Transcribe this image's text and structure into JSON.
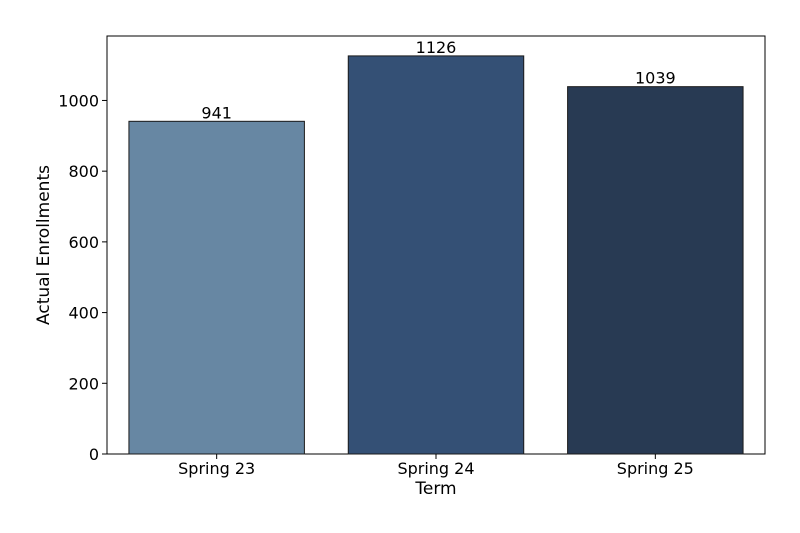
{
  "chart_data": {
    "type": "bar",
    "title": "",
    "xlabel": "Term",
    "ylabel": "Actual Enrollments",
    "categories": [
      "Spring 23",
      "Spring 24",
      "Spring 25"
    ],
    "values": [
      941,
      1126,
      1039
    ],
    "data_labels": [
      "941",
      "1126",
      "1039"
    ],
    "colors": [
      "#6787a3",
      "#345075",
      "#283a53"
    ],
    "ylim": [
      0,
      1182.3
    ],
    "yticks": [
      0,
      200,
      400,
      600,
      800,
      1000
    ],
    "ytick_labels": [
      "0",
      "200",
      "400",
      "600",
      "800",
      "1000"
    ],
    "grid": false,
    "legend": "none"
  }
}
